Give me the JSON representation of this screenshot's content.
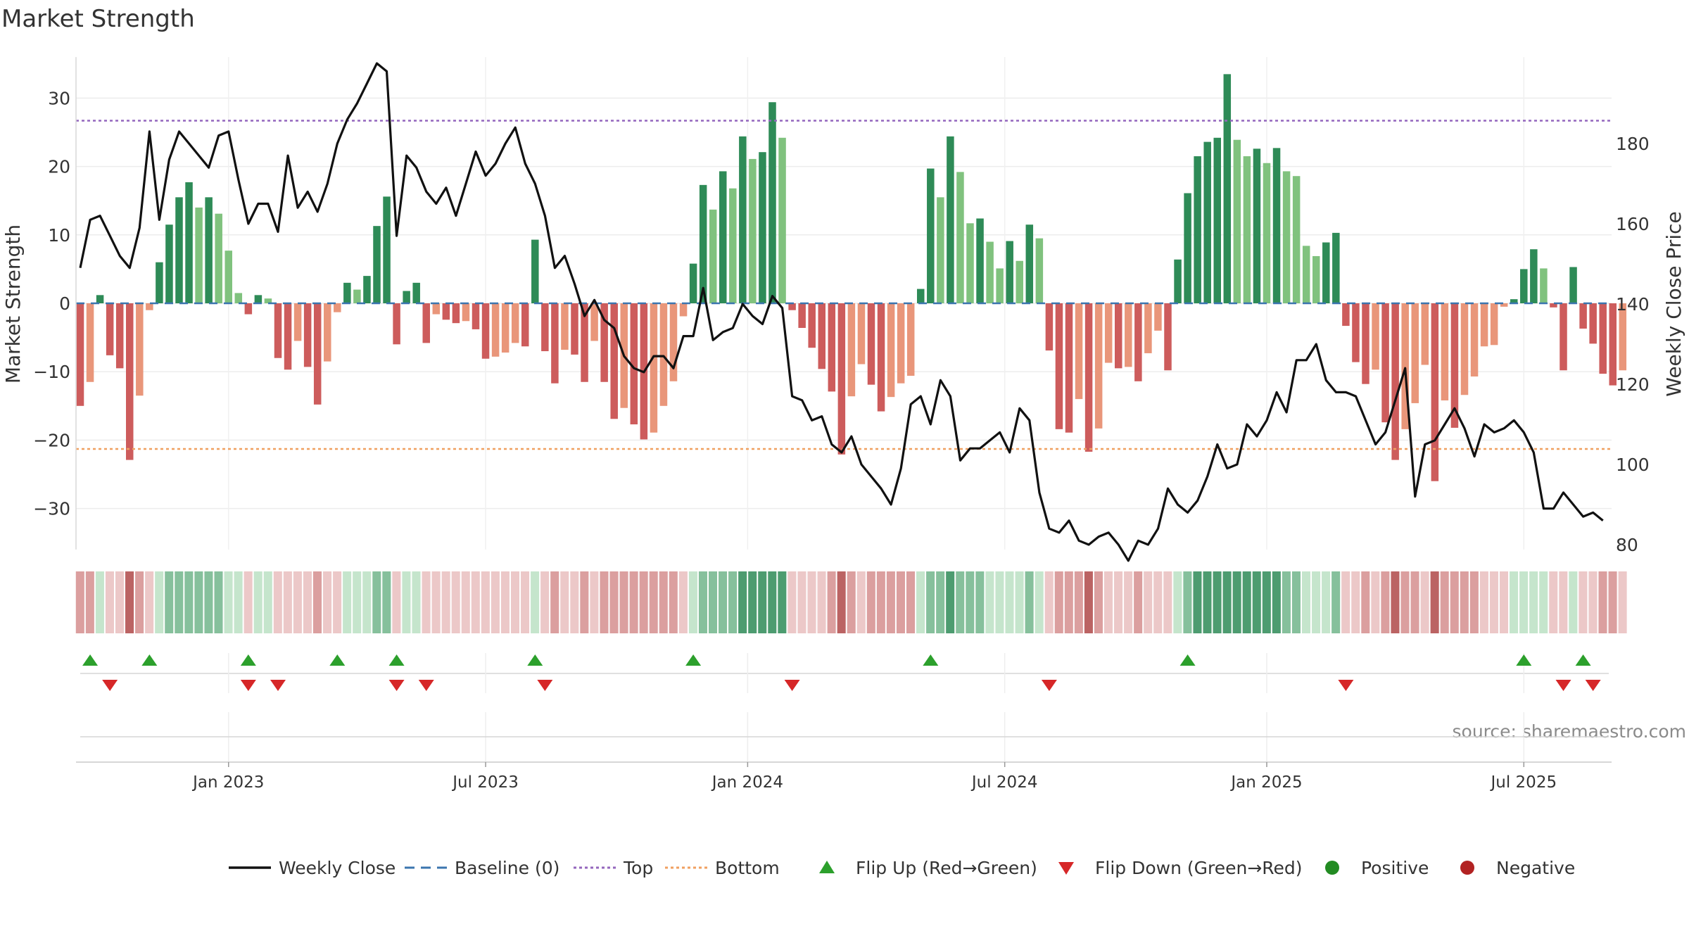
{
  "chart_data": {
    "type": "bar",
    "title": "Market Strength",
    "ylabel_left": "Market Strength",
    "ylabel_right": "Weekly Close Price",
    "ylim_left": [
      -36,
      36
    ],
    "ylim_right": [
      77,
      197
    ],
    "yticks_left": [
      30,
      20,
      10,
      0,
      -10,
      -20,
      -30
    ],
    "ytick_labels_left": [
      "30",
      "20",
      "10",
      "0",
      "−10",
      "−20",
      "−30"
    ],
    "yticks_right": [
      180,
      160,
      140,
      120,
      100,
      80
    ],
    "ytick_labels_right": [
      "180",
      "160",
      "140",
      "120",
      "100",
      "80"
    ],
    "x_ticks": [
      {
        "label": "Jan 2023",
        "week": 15
      },
      {
        "label": "Jul 2023",
        "week": 41
      },
      {
        "label": "Jan 2024",
        "week": 67.5
      },
      {
        "label": "Jul 2024",
        "week": 93.5
      },
      {
        "label": "Jan 2025",
        "week": 120
      },
      {
        "label": "Jul 2025",
        "week": 146
      }
    ],
    "strength": [
      -15,
      -11.5,
      1.2,
      -7.6,
      -9.5,
      -22.9,
      -13.5,
      -1,
      6,
      11.5,
      15.5,
      17.7,
      14,
      15.5,
      13.1,
      7.7,
      1.5,
      -1.6,
      1.2,
      0.7,
      -8,
      -9.7,
      -5.5,
      -9.3,
      -14.8,
      -8.5,
      -1.3,
      3,
      2,
      4,
      11.3,
      15.6,
      -6,
      1.8,
      3,
      -5.8,
      -1.6,
      -2.4,
      -2.9,
      -2.6,
      -3.8,
      -8.1,
      -7.8,
      -7.2,
      -5.8,
      -6.3,
      9.3,
      -7,
      -11.7,
      -6.8,
      -7.5,
      -11.5,
      -5.5,
      -11.5,
      -16.9,
      -15.3,
      -17.7,
      -19.9,
      -18.9,
      -15,
      -11.4,
      -1.9,
      5.8,
      17.3,
      13.7,
      19.3,
      16.8,
      24.4,
      21.1,
      22.1,
      29.4,
      24.2,
      -1,
      -3.6,
      -6.5,
      -9.6,
      -12.9,
      -22.1,
      -13.6,
      -8.9,
      -11.9,
      -15.8,
      -13.7,
      -11.7,
      -10.6,
      2.1,
      19.7,
      15.5,
      24.4,
      19.2,
      11.7,
      12.4,
      9,
      5.1,
      9.1,
      6.2,
      11.5,
      9.5,
      -6.9,
      -18.4,
      -18.9,
      -14,
      -21.7,
      -18.3,
      -8.7,
      -9.5,
      -9.3,
      -11.4,
      -7.3,
      -4,
      -9.8,
      6.4,
      16.1,
      21.5,
      23.6,
      24.2,
      33.5,
      23.9,
      21.5,
      22.6,
      20.5,
      22.7,
      19.3,
      18.6,
      8.4,
      6.9,
      8.9,
      10.3,
      -3.3,
      -8.6,
      -11.8,
      -9.7,
      -17.4,
      -22.9,
      -18.4,
      -14.6,
      -9,
      -26,
      -14.2,
      -18.2,
      -13.4,
      -10.7,
      -6.3,
      -6.1,
      -0.5,
      0.6,
      5,
      7.9,
      5.1,
      -0.6,
      -9.8,
      5.3,
      -3.7,
      -5.9,
      -10.3,
      -12,
      -9.8
    ],
    "close": [
      149,
      161,
      162,
      157,
      152,
      149,
      159,
      183,
      161,
      176,
      183,
      180,
      177,
      174,
      182,
      183,
      171,
      160,
      165,
      165,
      158,
      177,
      164,
      168,
      163,
      170,
      180,
      186,
      190,
      195,
      200,
      198,
      157,
      177,
      174,
      168,
      165,
      169,
      162,
      170,
      178,
      172,
      175,
      180,
      184,
      175,
      170,
      162,
      149,
      152,
      145,
      137,
      141,
      136,
      134,
      127,
      124,
      123,
      127,
      127,
      124,
      132,
      132,
      144,
      131,
      133,
      134,
      140,
      137,
      135,
      142,
      139,
      117,
      116,
      111,
      112,
      105,
      103,
      107,
      100,
      97,
      94,
      90,
      99,
      115,
      117,
      110,
      121,
      117,
      101,
      104,
      104,
      106,
      108,
      103,
      114,
      111,
      93,
      84,
      83,
      86,
      81,
      80,
      82,
      83,
      80,
      76,
      81,
      80,
      84,
      94,
      90,
      88,
      91,
      97,
      105,
      99,
      100,
      110,
      107,
      111,
      118,
      113,
      126,
      126,
      130,
      121,
      118,
      118,
      117,
      111,
      105,
      108,
      116,
      124,
      92,
      105,
      106,
      110,
      114,
      109,
      102,
      110,
      108,
      109,
      111,
      108,
      103,
      89,
      89,
      93,
      90,
      87,
      88,
      86
    ],
    "flip_up_weeks": [
      1,
      7,
      17,
      26,
      32,
      46,
      62,
      86,
      112,
      146,
      152
    ],
    "flip_down_weeks": [
      3,
      17,
      20,
      32,
      35,
      47,
      72,
      98,
      128,
      150,
      153
    ],
    "top_level": 26.7,
    "bottom_level": -21.3,
    "baseline": 0,
    "source_text": "source: sharemaestro.com",
    "legend": [
      {
        "label": "Weekly Close",
        "kind": "line",
        "color": "#111111"
      },
      {
        "label": "Baseline (0)",
        "kind": "dash",
        "color": "#3b75af"
      },
      {
        "label": "Top",
        "kind": "dot",
        "color": "#9467bd"
      },
      {
        "label": "Bottom",
        "kind": "dot",
        "color": "#f0a060"
      },
      {
        "label": "Flip Up (Red→Green)",
        "kind": "tri-up",
        "color": "#2ca02c"
      },
      {
        "label": "Flip Down (Green→Red)",
        "kind": "tri-down",
        "color": "#d62728"
      },
      {
        "label": "Positive",
        "kind": "circle",
        "color": "#228b22"
      },
      {
        "label": "Negative",
        "kind": "circle",
        "color": "#b22222"
      }
    ]
  }
}
